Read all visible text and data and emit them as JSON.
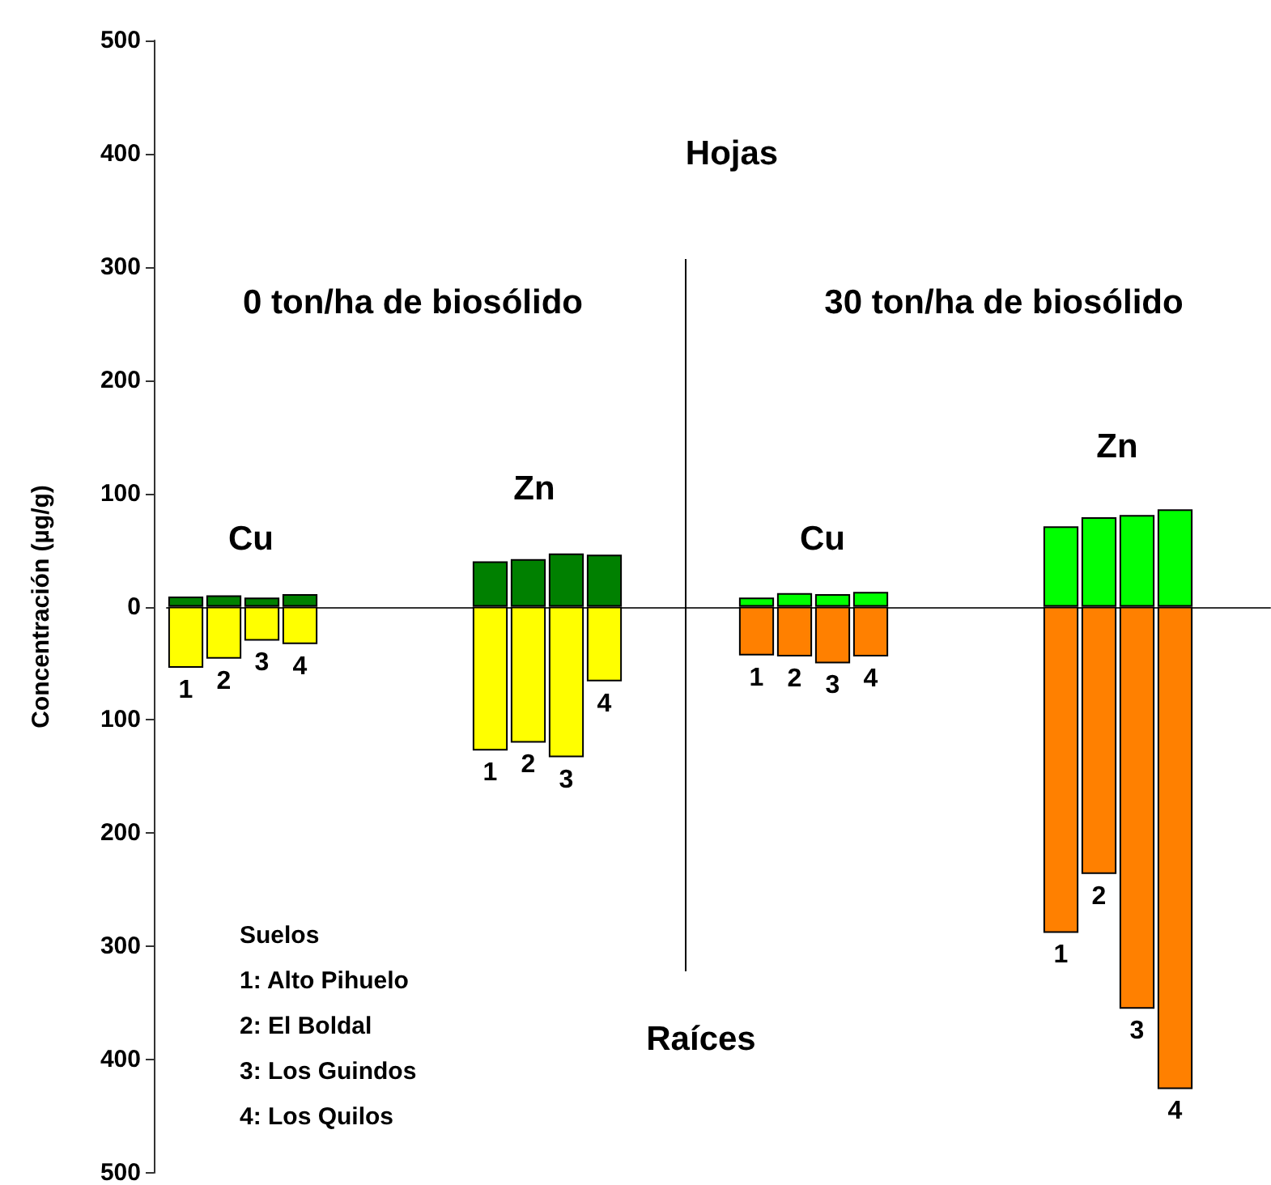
{
  "chart_data": {
    "type": "bar",
    "stacked": true,
    "ylabel": "Concentración (µg/g)",
    "categories": [
      "1",
      "2",
      "3",
      "4",
      null,
      null,
      null,
      null,
      "1",
      "2",
      "3",
      "4",
      null,
      null,
      null,
      "1",
      "2",
      "3",
      "4",
      null,
      null,
      null,
      null,
      "1",
      "2",
      "3",
      "4",
      null,
      null
    ],
    "series": [
      {
        "color": "#008000",
        "values": [
          9,
          10,
          8,
          11,
          null,
          null,
          null,
          null,
          40,
          42,
          47,
          46,
          null,
          null,
          null,
          null,
          null,
          null,
          null,
          null,
          null,
          null,
          null,
          null,
          null,
          null,
          null,
          null,
          null
        ]
      },
      {
        "color": "#ffff00",
        "values": [
          -54,
          -46,
          -30,
          -33,
          null,
          null,
          null,
          null,
          -127,
          -120,
          -133,
          -66,
          null,
          null,
          null,
          null,
          null,
          null,
          null,
          null,
          null,
          null,
          null,
          null,
          null,
          null,
          null,
          null,
          null
        ]
      },
      {
        "color": "#00ff00",
        "values": [
          null,
          null,
          null,
          null,
          null,
          null,
          null,
          null,
          null,
          null,
          null,
          null,
          null,
          null,
          null,
          8,
          12,
          11,
          13,
          null,
          null,
          null,
          null,
          71,
          79,
          81,
          86,
          null,
          null
        ]
      },
      {
        "color": "#ff8000",
        "values": [
          null,
          null,
          null,
          null,
          null,
          null,
          null,
          null,
          null,
          null,
          null,
          null,
          null,
          null,
          null,
          -43,
          -44,
          -50,
          -44,
          null,
          null,
          null,
          null,
          -288,
          -236,
          -355,
          -426,
          null,
          null
        ]
      }
    ],
    "ylim": [
      -500,
      500
    ],
    "yticks": [
      {
        "value": -500,
        "label": "500"
      },
      {
        "value": -400,
        "label": "400"
      },
      {
        "value": -300,
        "label": "300"
      },
      {
        "value": -200,
        "label": "200"
      },
      {
        "value": -100,
        "label": "100"
      },
      0,
      100,
      200,
      300,
      400,
      500
    ],
    "tick_labels": "y",
    "grid": false,
    "annotations": [
      "Hojas",
      "0 ton/ha de biosólido",
      "30 ton/ha de biosólido",
      "Cu",
      "Zn",
      "Cu",
      "Zn",
      "Raíces",
      "Suelos",
      "1: Alto Pihuelo",
      "2: El Boldal",
      "3: Los Guindos",
      "4: Los Quilos"
    ]
  }
}
